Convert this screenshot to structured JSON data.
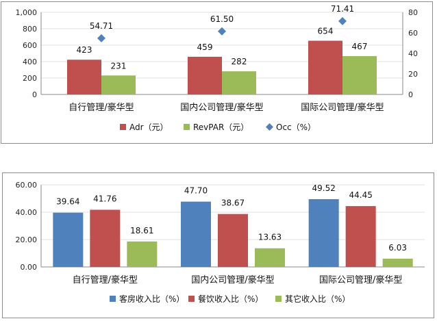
{
  "chart_data": [
    {
      "type": "bar",
      "categories": [
        "自行管理/豪华型",
        "国内公司管理/豪华型",
        "国际公司管理/豪华型"
      ],
      "series": [
        {
          "name": "Adr（元）",
          "values": [
            423,
            459,
            654
          ],
          "labels": [
            "423",
            "459",
            "654"
          ],
          "color": "#c0504d",
          "axis": "left"
        },
        {
          "name": "RevPAR（元）",
          "values": [
            231,
            282,
            467
          ],
          "labels": [
            "231",
            "282",
            "467"
          ],
          "color": "#9bbb59",
          "axis": "left"
        }
      ],
      "line_series": {
        "name": "Occ（%）",
        "type": "scatter",
        "values": [
          54.71,
          61.5,
          71.41
        ],
        "labels": [
          "54.71",
          "61.50",
          "71.41"
        ],
        "color": "#4f81bd",
        "axis": "right"
      },
      "ylim": [
        0,
        1000
      ],
      "y_ticks": [
        "0",
        "200",
        "400",
        "600",
        "800",
        "1,000"
      ],
      "y2lim": [
        0,
        80
      ],
      "y2_ticks": [
        "0",
        "20",
        "40",
        "60",
        "80"
      ],
      "legend_position": "bottom"
    },
    {
      "type": "bar",
      "categories": [
        "自行管理/豪华型",
        "国内公司管理/豪华型",
        "国际公司管理/豪华型"
      ],
      "series": [
        {
          "name": "客房收入比（%）",
          "values": [
            39.64,
            47.7,
            49.52
          ],
          "labels": [
            "39.64",
            "47.70",
            "49.52"
          ],
          "color": "#4f81bd"
        },
        {
          "name": "餐饮收入比（%）",
          "values": [
            41.76,
            38.67,
            44.45
          ],
          "labels": [
            "41.76",
            "38.67",
            "44.45"
          ],
          "color": "#c0504d"
        },
        {
          "name": "其它收入比（%）",
          "values": [
            18.61,
            13.63,
            6.03
          ],
          "labels": [
            "18.61",
            "13.63",
            "6.03"
          ],
          "color": "#9bbb59"
        }
      ],
      "ylim": [
        0,
        60
      ],
      "y_ticks": [
        "0.00",
        "20.00",
        "40.00",
        "60.00"
      ],
      "legend_position": "bottom"
    }
  ]
}
